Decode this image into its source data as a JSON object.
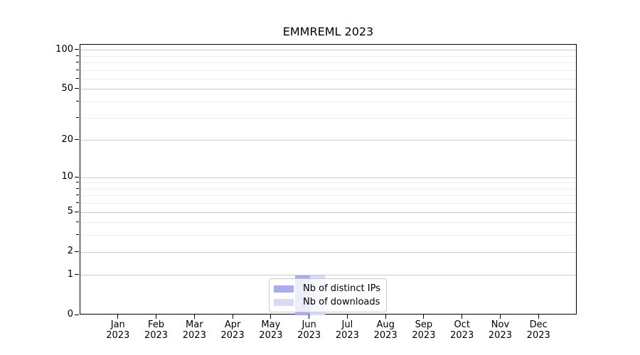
{
  "chart_data": {
    "type": "bar",
    "title": "EMMREML 2023",
    "categories": [
      "Jan",
      "Feb",
      "Mar",
      "Apr",
      "May",
      "Jun",
      "Jul",
      "Aug",
      "Sep",
      "Oct",
      "Nov",
      "Dec"
    ],
    "year": "2023",
    "series": [
      {
        "name": "Nb of distinct IPs",
        "color": "#a8abec",
        "values": [
          0,
          0,
          0,
          0,
          0,
          1,
          0,
          0,
          0,
          0,
          0,
          0
        ]
      },
      {
        "name": "Nb of downloads",
        "color": "#d8daf6",
        "values": [
          0,
          0,
          0,
          0,
          0,
          1,
          0,
          0,
          0,
          0,
          0,
          0
        ]
      }
    ],
    "y_scale": "log1p",
    "y_ticks": [
      0,
      1,
      2,
      5,
      10,
      20,
      50,
      100
    ],
    "y_minor_ticks": [
      3,
      4,
      6,
      7,
      8,
      9,
      30,
      40,
      60,
      70,
      80,
      90
    ],
    "ylim": [
      0,
      110
    ],
    "grid": "on",
    "legend_position": "lower center",
    "colors": {
      "major_grid": "#cccccc",
      "minor_grid": "#ededed",
      "axis": "#000000",
      "legend_border": "#cccccc"
    }
  }
}
